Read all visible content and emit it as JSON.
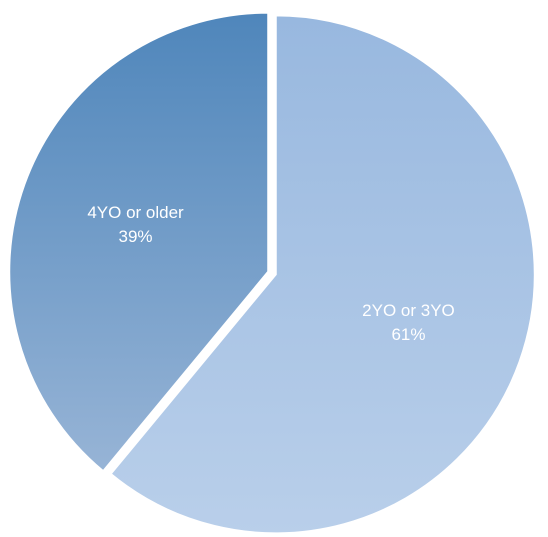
{
  "chart_data": {
    "type": "pie",
    "title": "",
    "start_angle_deg": 0,
    "direction": "clockwise",
    "slices": [
      {
        "label": "2YO or 3YO",
        "value": 61,
        "value_label": "61%",
        "color_top": "#98b8df",
        "color_bottom": "#b9cfea"
      },
      {
        "label": "4YO or older",
        "value": 39,
        "value_label": "39%",
        "color_top": "#4f86bb",
        "color_bottom": "#97b4d6"
      }
    ],
    "legend": "none",
    "label_color": "#ffffff"
  }
}
